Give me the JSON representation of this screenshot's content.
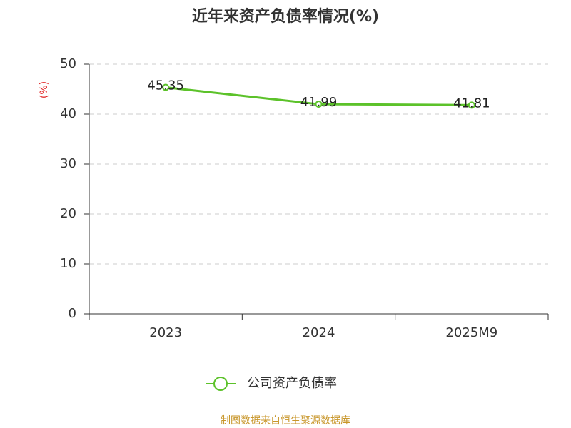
{
  "chart_data": {
    "type": "line",
    "title": "近年来资产负债率情况(%)",
    "y_label": "(%)",
    "categories": [
      "2023",
      "2024",
      "2025M9"
    ],
    "series": [
      {
        "name": "公司资产负债率",
        "color": "#5cc22a",
        "values": [
          45.35,
          41.99,
          41.81
        ]
      }
    ],
    "ylim": [
      0,
      50
    ],
    "yticks": [
      0,
      10,
      20,
      30,
      40,
      50
    ],
    "grid": true,
    "legend": "bottom",
    "source": "制图数据来自恒生聚源数据库"
  }
}
